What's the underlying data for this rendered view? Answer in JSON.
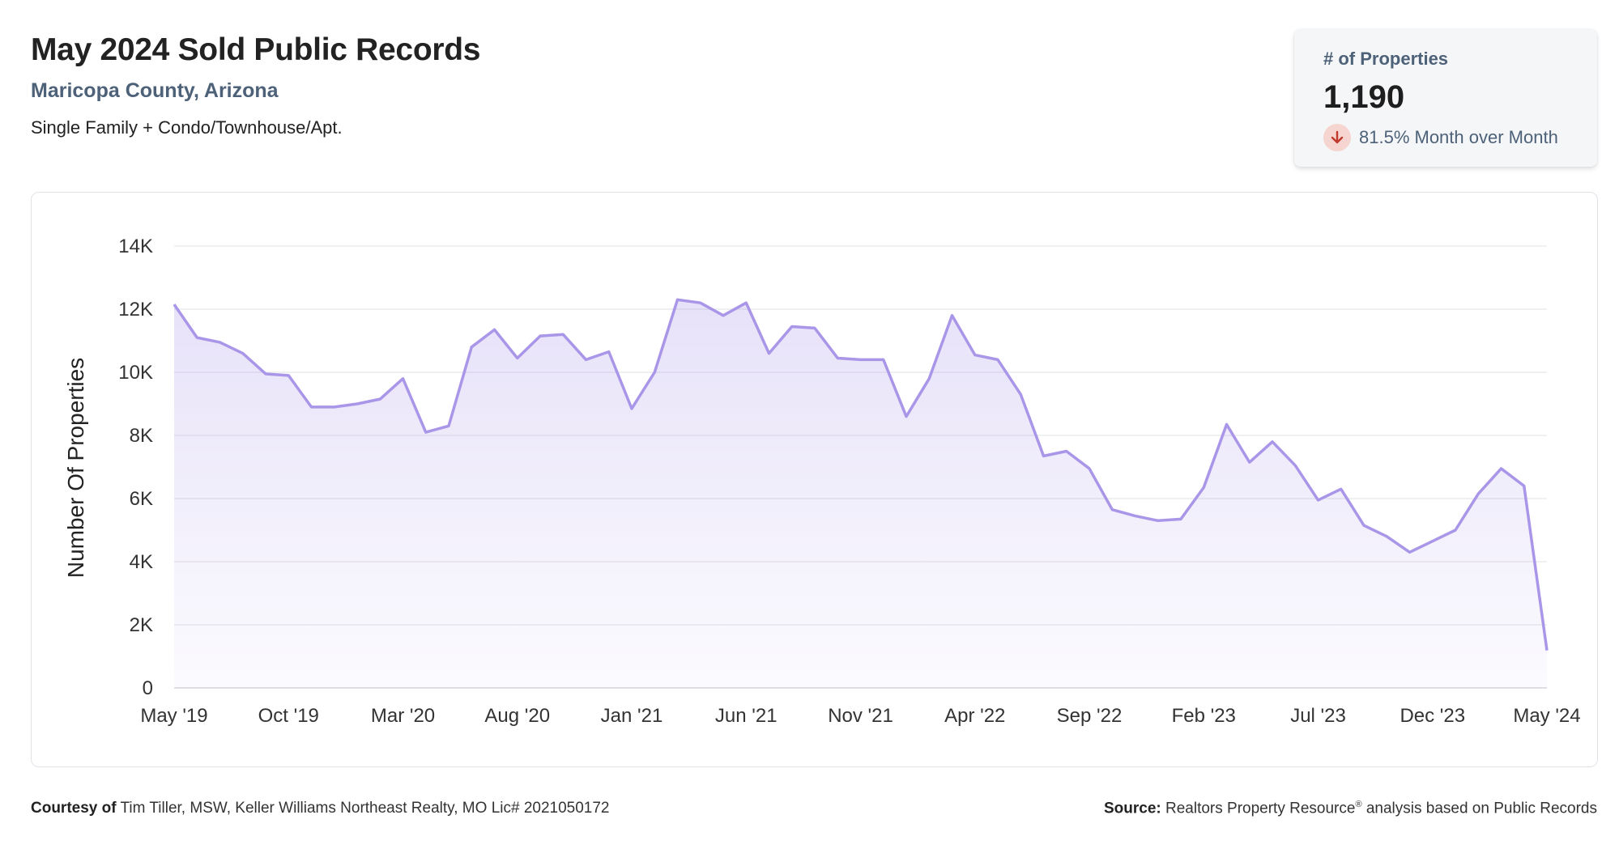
{
  "header": {
    "title": "May 2024 Sold Public Records",
    "subtitle": "Maricopa County, Arizona",
    "property_types": "Single Family + Condo/Townhouse/Apt."
  },
  "stat_card": {
    "label": "# of Properties",
    "value": "1,190",
    "change": "81.5% Month over Month",
    "trend_icon": "arrow-down-icon",
    "trend_color": "#c0392b"
  },
  "footer": {
    "courtesy_label": "Courtesy of",
    "courtesy_text": "Tim Tiller, MSW, Keller Williams Northeast Realty, MO Lic# 2021050172",
    "source_label": "Source:",
    "source_name": "Realtors Property Resource",
    "source_mark": "®",
    "source_text": "analysis based on Public Records"
  },
  "chart_data": {
    "type": "area",
    "title": "",
    "xlabel": "",
    "ylabel": "Number Of Properties",
    "ylim": [
      0,
      14000
    ],
    "y_ticks": [
      {
        "value": 0,
        "label": "0"
      },
      {
        "value": 2000,
        "label": "2K"
      },
      {
        "value": 4000,
        "label": "4K"
      },
      {
        "value": 6000,
        "label": "6K"
      },
      {
        "value": 8000,
        "label": "8K"
      },
      {
        "value": 10000,
        "label": "10K"
      },
      {
        "value": 12000,
        "label": "12K"
      },
      {
        "value": 14000,
        "label": "14K"
      }
    ],
    "x_ticks": [
      {
        "index": 0,
        "label": "May '19"
      },
      {
        "index": 5,
        "label": "Oct '19"
      },
      {
        "index": 10,
        "label": "Mar '20"
      },
      {
        "index": 15,
        "label": "Aug '20"
      },
      {
        "index": 20,
        "label": "Jan '21"
      },
      {
        "index": 25,
        "label": "Jun '21"
      },
      {
        "index": 30,
        "label": "Nov '21"
      },
      {
        "index": 35,
        "label": "Apr '22"
      },
      {
        "index": 40,
        "label": "Sep '22"
      },
      {
        "index": 45,
        "label": "Feb '23"
      },
      {
        "index": 50,
        "label": "Jul '23"
      },
      {
        "index": 55,
        "label": "Dec '23"
      },
      {
        "index": 60,
        "label": "May '24"
      }
    ],
    "grid": true,
    "line_color": "#a996e8",
    "fill_color": "#a996e8",
    "series": [
      {
        "x": [
          "2019-05",
          "2019-06",
          "2019-07",
          "2019-08",
          "2019-09",
          "2019-10",
          "2019-11",
          "2019-12",
          "2020-01",
          "2020-02",
          "2020-03",
          "2020-04",
          "2020-05",
          "2020-06",
          "2020-07",
          "2020-08",
          "2020-09",
          "2020-10",
          "2020-11",
          "2020-12",
          "2021-01",
          "2021-02",
          "2021-03",
          "2021-04",
          "2021-05",
          "2021-06",
          "2021-07",
          "2021-08",
          "2021-09",
          "2021-10",
          "2021-11",
          "2021-12",
          "2022-01",
          "2022-02",
          "2022-03",
          "2022-04",
          "2022-05",
          "2022-06",
          "2022-07",
          "2022-08",
          "2022-09",
          "2022-10",
          "2022-11",
          "2022-12",
          "2023-01",
          "2023-02",
          "2023-03",
          "2023-04",
          "2023-05",
          "2023-06",
          "2023-07",
          "2023-08",
          "2023-09",
          "2023-10",
          "2023-11",
          "2023-12",
          "2024-01",
          "2024-02",
          "2024-03",
          "2024-04",
          "2024-05"
        ],
        "values": [
          12150,
          11100,
          10950,
          10600,
          9950,
          9900,
          8900,
          8900,
          9000,
          9150,
          9800,
          8100,
          8300,
          10800,
          11350,
          10450,
          11150,
          11200,
          10400,
          10650,
          8850,
          10000,
          12300,
          12200,
          11800,
          12200,
          10600,
          11450,
          11400,
          10450,
          10400,
          10400,
          8600,
          9800,
          11800,
          10550,
          10400,
          9300,
          7350,
          7500,
          6950,
          5650,
          5450,
          5300,
          5350,
          6350,
          8350,
          7150,
          7800,
          7050,
          5950,
          6300,
          5150,
          4800,
          4300,
          4650,
          5000,
          6150,
          6950,
          6400,
          1190
        ]
      }
    ]
  }
}
